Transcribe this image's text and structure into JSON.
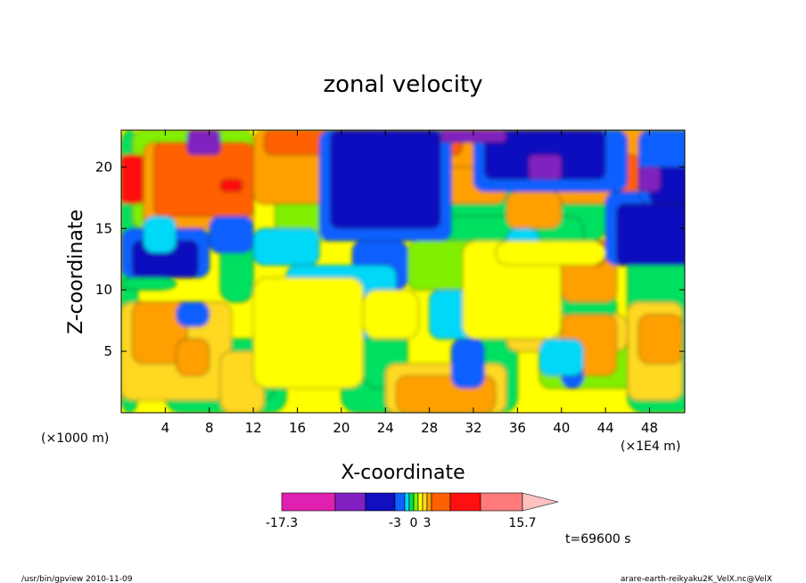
{
  "chart_data": {
    "type": "heatmap",
    "title": "zonal velocity",
    "xlabel": "X-coordinate",
    "ylabel": "Z-coordinate",
    "x_unit_label": "(×1E4 m)",
    "y_unit_label": "(×1000 m)",
    "xlim": [
      0,
      51.2
    ],
    "ylim": [
      0,
      23
    ],
    "x_ticks": [
      4,
      8,
      12,
      16,
      20,
      24,
      28,
      32,
      36,
      40,
      44,
      48
    ],
    "y_ticks": [
      5,
      10,
      15,
      20
    ],
    "colorbar": {
      "boundaries": [
        -17.3,
        -12,
        -8,
        -3,
        -2,
        -1,
        0,
        1,
        2,
        3,
        6,
        9,
        12,
        15.7
      ],
      "colors": [
        "#e020b0",
        "#8020c0",
        "#1010c0",
        "#1060ff",
        "#00d8f8",
        "#00e060",
        "#80f000",
        "#ffff00",
        "#ffd820",
        "#ffa000",
        "#ff6000",
        "#ff1010",
        "#ff7a7a",
        "#ffc0c0"
      ],
      "labels": [
        "-17.3",
        "-3",
        "0",
        "3",
        "15.7"
      ]
    },
    "time_label": "t=69600 s"
  },
  "footer": {
    "left": "/usr/bin/gpview   2010-11-09",
    "right": "arare-earth-reikyaku2K_VelX.nc@VelX"
  }
}
